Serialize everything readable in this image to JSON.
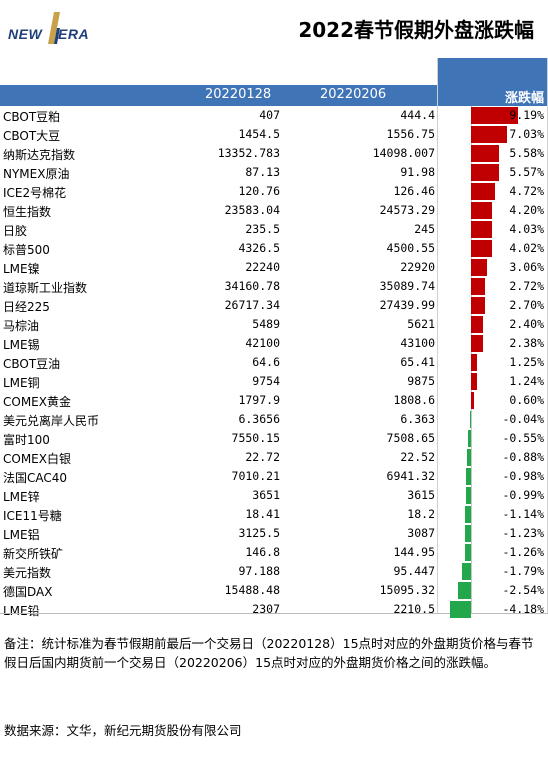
{
  "logo": {
    "left_text": "NEW",
    "right_text": "ERA",
    "accent_color": "#1f3f7a",
    "mark_color": "#c8a24a"
  },
  "title": "2022春节假期外盘涨跌幅",
  "header": {
    "col1": "20220128",
    "col2": "20220206",
    "col3": "涨跌幅",
    "bg_color": "#3f74b6"
  },
  "colors": {
    "positive": "#c00000",
    "negative": "#22a84a"
  },
  "table": {
    "columns": [
      "",
      "20220128",
      "20220206",
      "涨跌幅"
    ],
    "rows": [
      {
        "name": "CBOT豆粕",
        "v1": "407",
        "v2": "444.4",
        "pct": "9.19%",
        "pct_value": 9.19
      },
      {
        "name": "CBOT大豆",
        "v1": "1454.5",
        "v2": "1556.75",
        "pct": "7.03%",
        "pct_value": 7.03
      },
      {
        "name": "纳斯达克指数",
        "v1": "13352.783",
        "v2": "14098.007",
        "pct": "5.58%",
        "pct_value": 5.58
      },
      {
        "name": "NYMEX原油",
        "v1": "87.13",
        "v2": "91.98",
        "pct": "5.57%",
        "pct_value": 5.57
      },
      {
        "name": "ICE2号棉花",
        "v1": "120.76",
        "v2": "126.46",
        "pct": "4.72%",
        "pct_value": 4.72
      },
      {
        "name": "恒生指数",
        "v1": "23583.04",
        "v2": "24573.29",
        "pct": "4.20%",
        "pct_value": 4.2
      },
      {
        "name": "日胶",
        "v1": "235.5",
        "v2": "245",
        "pct": "4.03%",
        "pct_value": 4.03
      },
      {
        "name": "标普500",
        "v1": "4326.5",
        "v2": "4500.55",
        "pct": "4.02%",
        "pct_value": 4.02
      },
      {
        "name": "LME镍",
        "v1": "22240",
        "v2": "22920",
        "pct": "3.06%",
        "pct_value": 3.06
      },
      {
        "name": "道琼斯工业指数",
        "v1": "34160.78",
        "v2": "35089.74",
        "pct": "2.72%",
        "pct_value": 2.72
      },
      {
        "name": "日经225",
        "v1": "26717.34",
        "v2": "27439.99",
        "pct": "2.70%",
        "pct_value": 2.7
      },
      {
        "name": "马棕油",
        "v1": "5489",
        "v2": "5621",
        "pct": "2.40%",
        "pct_value": 2.4
      },
      {
        "name": "LME锡",
        "v1": "42100",
        "v2": "43100",
        "pct": "2.38%",
        "pct_value": 2.38
      },
      {
        "name": "CBOT豆油",
        "v1": "64.6",
        "v2": "65.41",
        "pct": "1.25%",
        "pct_value": 1.25
      },
      {
        "name": "LME铜",
        "v1": "9754",
        "v2": "9875",
        "pct": "1.24%",
        "pct_value": 1.24
      },
      {
        "name": "COMEX黄金",
        "v1": "1797.9",
        "v2": "1808.6",
        "pct": "0.60%",
        "pct_value": 0.6
      },
      {
        "name": "美元兑离岸人民币",
        "v1": "6.3656",
        "v2": "6.363",
        "pct": "-0.04%",
        "pct_value": -0.04
      },
      {
        "name": "富时100",
        "v1": "7550.15",
        "v2": "7508.65",
        "pct": "-0.55%",
        "pct_value": -0.55
      },
      {
        "name": "COMEX白银",
        "v1": "22.72",
        "v2": "22.52",
        "pct": "-0.88%",
        "pct_value": -0.88
      },
      {
        "name": "法国CAC40",
        "v1": "7010.21",
        "v2": "6941.32",
        "pct": "-0.98%",
        "pct_value": -0.98
      },
      {
        "name": "LME锌",
        "v1": "3651",
        "v2": "3615",
        "pct": "-0.99%",
        "pct_value": -0.99
      },
      {
        "name": "ICE11号糖",
        "v1": "18.41",
        "v2": "18.2",
        "pct": "-1.14%",
        "pct_value": -1.14
      },
      {
        "name": "LME铝",
        "v1": "3125.5",
        "v2": "3087",
        "pct": "-1.23%",
        "pct_value": -1.23
      },
      {
        "name": "新交所铁矿",
        "v1": "146.8",
        "v2": "144.95",
        "pct": "-1.26%",
        "pct_value": -1.26
      },
      {
        "name": "美元指数",
        "v1": "97.188",
        "v2": "95.447",
        "pct": "-1.79%",
        "pct_value": -1.79
      },
      {
        "name": "德国DAX",
        "v1": "15488.48",
        "v2": "15095.32",
        "pct": "-2.54%",
        "pct_value": -2.54
      },
      {
        "name": "LME铅",
        "v1": "2307",
        "v2": "2210.5",
        "pct": "-4.18%",
        "pct_value": -4.18
      }
    ]
  },
  "note": "备注：统计标准为春节假期前最后一个交易日（20220128）15点时对应的外盘期货价格与春节假日后国内期货前一个交易日（20220206）15点时对应的外盘期货价格之间的涨跌幅。",
  "source": "数据来源：文华，新纪元期货股份有限公司"
}
